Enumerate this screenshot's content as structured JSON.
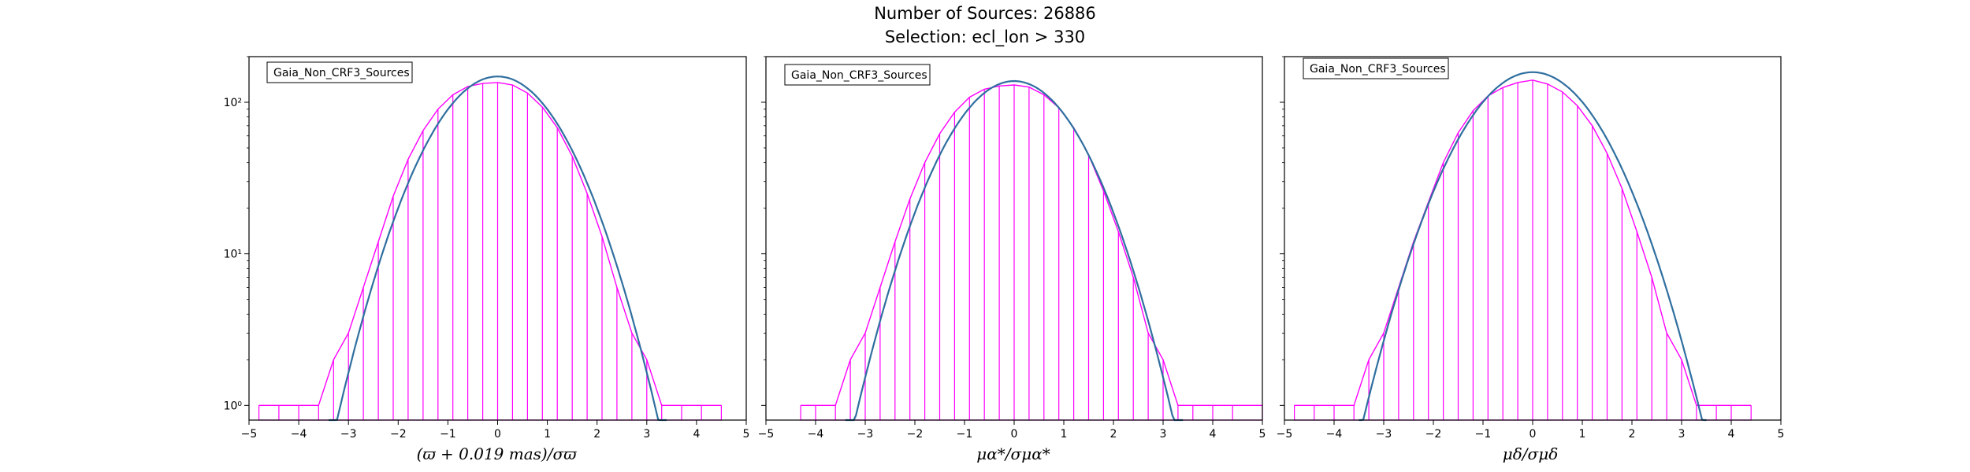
{
  "figure": {
    "title_line1": "Number of Sources: 26886",
    "title_line2": "Selection: ecl_lon > 330"
  },
  "colors": {
    "histogram": "#ff00ff",
    "gaussian_fit": "#2f6f9f",
    "axes": "#000000"
  },
  "chart_data": [
    {
      "type": "line",
      "subtype": "histogram-with-gaussian-fit",
      "xlabel": "(ϖ + 0.019 mas)/σϖ",
      "ylabel": "",
      "xlim": [
        -5,
        5
      ],
      "ylim": [
        0.8,
        200
      ],
      "yscale": "log",
      "xticks": [
        -5,
        -4,
        -3,
        -2,
        -1,
        0,
        1,
        2,
        3,
        4,
        5
      ],
      "xtick_labels": [
        "−5",
        "−4",
        "−3",
        "−2",
        "−1",
        "0",
        "1",
        "2",
        "3",
        "4",
        "5"
      ],
      "yticks": [
        1,
        10,
        100
      ],
      "ytick_labels": [
        "10⁰",
        "10¹",
        "10²"
      ],
      "legend": "Gaia_Non_CRF3_Sources",
      "legend_position": "top-left",
      "series": [
        {
          "name": "Gaia_Non_CRF3_Sources",
          "kind": "histogram",
          "x": [
            -4.8,
            -4.4,
            -4.0,
            -3.6,
            -3.3,
            -3.0,
            -2.7,
            -2.4,
            -2.1,
            -1.8,
            -1.5,
            -1.2,
            -0.9,
            -0.6,
            -0.3,
            0.0,
            0.3,
            0.6,
            0.9,
            1.2,
            1.5,
            1.8,
            2.1,
            2.4,
            2.7,
            3.0,
            3.3,
            3.7,
            4.1,
            4.5
          ],
          "y": [
            1,
            1,
            1,
            1,
            2,
            3,
            6,
            12,
            24,
            42,
            65,
            90,
            112,
            127,
            133,
            135,
            130,
            115,
            93,
            68,
            44,
            25,
            13,
            6,
            3,
            2,
            1,
            1,
            1,
            1
          ]
        },
        {
          "name": "",
          "kind": "gaussian",
          "amplitude": 148,
          "mean": 0.0,
          "sigma": 1.0,
          "x_range": [
            -3.4,
            3.4
          ]
        }
      ]
    },
    {
      "type": "line",
      "subtype": "histogram-with-gaussian-fit",
      "xlabel": "μα*/σμα*",
      "ylabel": "",
      "xlim": [
        -5,
        5
      ],
      "ylim": [
        0.8,
        200
      ],
      "yscale": "log",
      "xticks": [
        -5,
        -4,
        -3,
        -2,
        -1,
        0,
        1,
        2,
        3,
        4,
        5
      ],
      "xtick_labels": [
        "−5",
        "−4",
        "−3",
        "−2",
        "−1",
        "0",
        "1",
        "2",
        "3",
        "4",
        "5"
      ],
      "yticks": [
        1,
        10,
        100
      ],
      "ytick_labels": [
        "10⁰",
        "10¹",
        "10²"
      ],
      "legend": "Gaia_Non_CRF3_Sources",
      "legend_position": "top-left",
      "series": [
        {
          "name": "Gaia_Non_CRF3_Sources",
          "kind": "histogram",
          "x": [
            -4.3,
            -4.0,
            -3.6,
            -3.3,
            -3.0,
            -2.7,
            -2.4,
            -2.1,
            -1.8,
            -1.5,
            -1.2,
            -0.9,
            -0.6,
            -0.3,
            0.0,
            0.3,
            0.6,
            0.9,
            1.2,
            1.5,
            1.8,
            2.1,
            2.4,
            2.7,
            3.0,
            3.3,
            3.6,
            4.0,
            4.4,
            5.0
          ],
          "y": [
            1,
            1,
            1,
            2,
            3,
            6,
            12,
            23,
            40,
            62,
            86,
            108,
            122,
            128,
            130,
            126,
            112,
            92,
            68,
            45,
            26,
            14,
            7,
            3,
            2,
            1,
            1,
            1,
            1,
            1
          ]
        },
        {
          "name": "",
          "kind": "gaussian",
          "amplitude": 138,
          "mean": 0.0,
          "sigma": 1.0,
          "x_range": [
            -3.4,
            3.4
          ]
        }
      ]
    },
    {
      "type": "line",
      "subtype": "histogram-with-gaussian-fit",
      "xlabel": "μδ/σμδ",
      "ylabel": "",
      "xlim": [
        -5,
        5
      ],
      "ylim": [
        0.8,
        200
      ],
      "yscale": "log",
      "xticks": [
        -5,
        -4,
        -3,
        -2,
        -1,
        0,
        1,
        2,
        3,
        4,
        5
      ],
      "xtick_labels": [
        "−5",
        "−4",
        "−3",
        "−2",
        "−1",
        "0",
        "1",
        "2",
        "3",
        "4",
        "5"
      ],
      "yticks": [
        1,
        10,
        100
      ],
      "ytick_labels": [
        "10⁰",
        "10¹",
        "10²"
      ],
      "legend": "Gaia_Non_CRF3_Sources",
      "legend_position": "top-left",
      "series": [
        {
          "name": "Gaia_Non_CRF3_Sources",
          "kind": "histogram",
          "x": [
            -4.8,
            -4.4,
            -4.0,
            -3.6,
            -3.3,
            -3.0,
            -2.7,
            -2.4,
            -2.1,
            -1.8,
            -1.5,
            -1.2,
            -0.9,
            -0.6,
            -0.3,
            0.0,
            0.3,
            0.6,
            0.9,
            1.2,
            1.5,
            1.8,
            2.1,
            2.4,
            2.7,
            3.0,
            3.3,
            3.7,
            4.0,
            4.4
          ],
          "y": [
            1,
            1,
            1,
            1,
            2,
            3,
            6,
            12,
            22,
            40,
            63,
            88,
            110,
            125,
            135,
            140,
            132,
            117,
            95,
            70,
            46,
            27,
            14,
            7,
            3,
            2,
            1,
            1,
            1,
            1
          ]
        },
        {
          "name": "",
          "kind": "gaussian",
          "amplitude": 158,
          "mean": 0.0,
          "sigma": 1.05,
          "x_range": [
            -3.5,
            3.5
          ]
        }
      ]
    }
  ]
}
